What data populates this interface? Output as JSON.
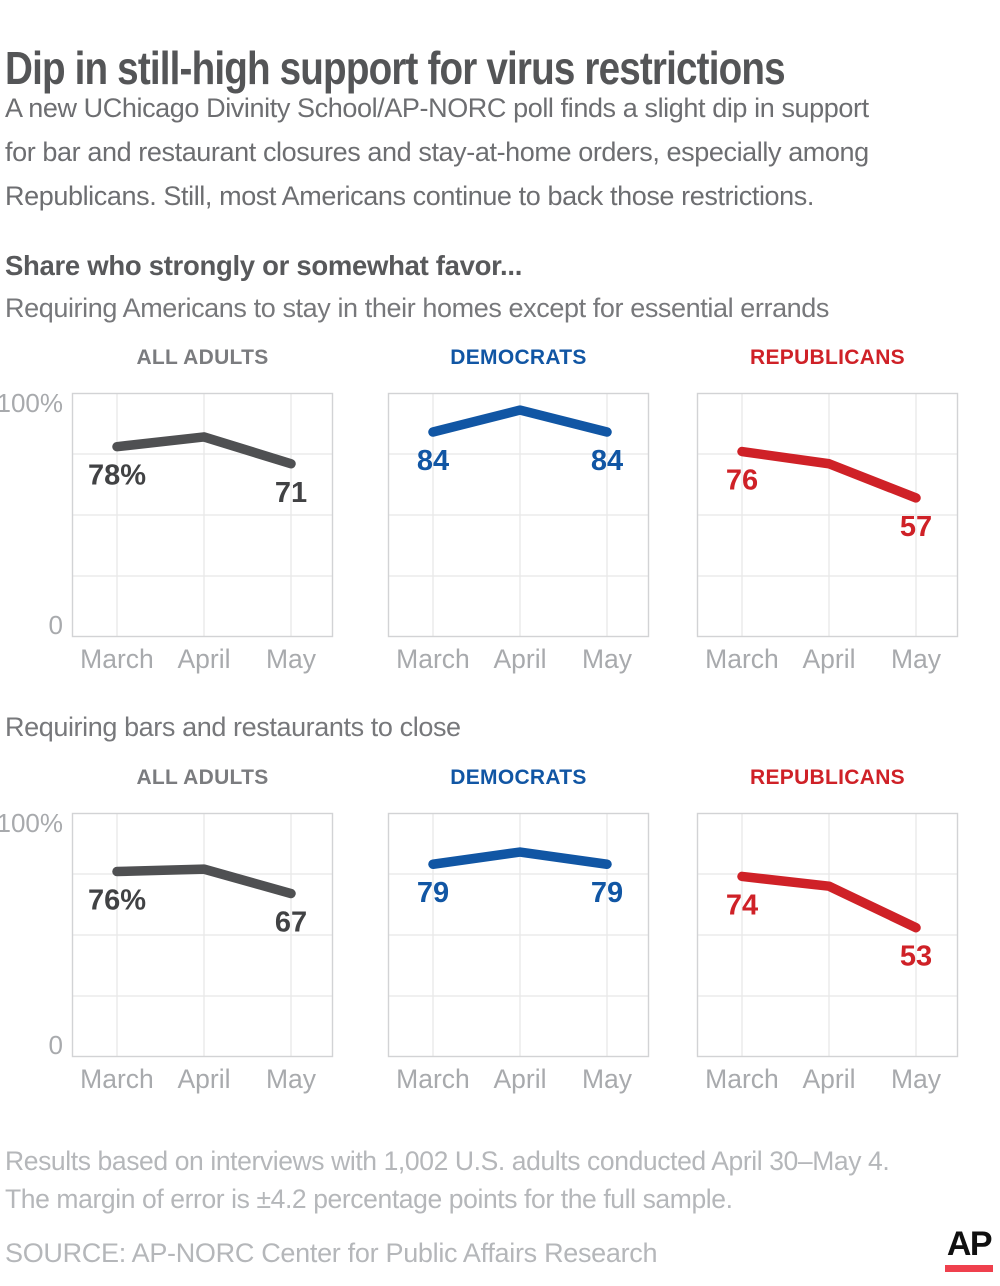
{
  "title": "Dip in still-high support for virus restrictions",
  "subtitle_lines": [
    "A new UChicago Divinity School/AP-NORC poll finds a slight dip in support",
    "for bar and restaurant closures and stay-at-home orders, especially among",
    "Republicans. Still, most Americans continue to back those restrictions."
  ],
  "section_heading": "Share who strongly or somewhat favor...",
  "colors": {
    "title_text": "#545557",
    "body_text": "#6d6e71",
    "question_text": "#77787b",
    "muted_text": "#a8aaad",
    "footnote_text": "#b5b7ba",
    "grid": "#e8e8e8",
    "plot_border": "#d2d3d5",
    "gray_line": "#4f5052",
    "blue": "#1156a4",
    "red": "#cf2127",
    "ap_bar_red": "#ef404d"
  },
  "chart_data": [
    {
      "type": "line",
      "question": "Requiring Americans to stay in their homes except for essential errands",
      "x": [
        "March",
        "April",
        "May"
      ],
      "ylim": [
        0,
        100
      ],
      "yticks": [
        "100%",
        "0"
      ],
      "grid": true,
      "legend_position": "none",
      "panels": [
        {
          "group": "ALL ADULTS",
          "header_color": "#7b7c7f",
          "color": "#4f5052",
          "label_color": "#414244",
          "values": [
            78,
            82,
            71
          ],
          "value_labels": [
            "78%",
            null,
            "71"
          ]
        },
        {
          "group": "DEMOCRATS",
          "header_color": "#1156a4",
          "color": "#1156a4",
          "label_color": "#1156a4",
          "values": [
            84,
            93,
            84
          ],
          "value_labels": [
            "84",
            null,
            "84"
          ]
        },
        {
          "group": "REPUBLICANS",
          "header_color": "#cf2127",
          "color": "#cf2127",
          "label_color": "#cf2127",
          "values": [
            76,
            71,
            57
          ],
          "value_labels": [
            "76",
            null,
            "57"
          ]
        }
      ]
    },
    {
      "type": "line",
      "question": "Requiring bars and restaurants to close",
      "x": [
        "March",
        "April",
        "May"
      ],
      "ylim": [
        0,
        100
      ],
      "yticks": [
        "100%",
        "0"
      ],
      "grid": true,
      "legend_position": "none",
      "panels": [
        {
          "group": "ALL ADULTS",
          "header_color": "#7b7c7f",
          "color": "#4f5052",
          "label_color": "#414244",
          "values": [
            76,
            77,
            67
          ],
          "value_labels": [
            "76%",
            null,
            "67"
          ]
        },
        {
          "group": "DEMOCRATS",
          "header_color": "#1156a4",
          "color": "#1156a4",
          "label_color": "#1156a4",
          "values": [
            79,
            84,
            79
          ],
          "value_labels": [
            "79",
            null,
            "79"
          ]
        },
        {
          "group": "REPUBLICANS",
          "header_color": "#cf2127",
          "color": "#cf2127",
          "label_color": "#cf2127",
          "values": [
            74,
            70,
            53
          ],
          "value_labels": [
            "74",
            null,
            "53"
          ]
        }
      ]
    }
  ],
  "footnote_lines": [
    "Results based on interviews with 1,002 U.S. adults conducted April 30–May 4.",
    "The margin of error is ±4.2 percentage points for the full sample."
  ],
  "source": "SOURCE: AP-NORC Center for Public Affairs Research",
  "logo": {
    "text": "AP"
  }
}
